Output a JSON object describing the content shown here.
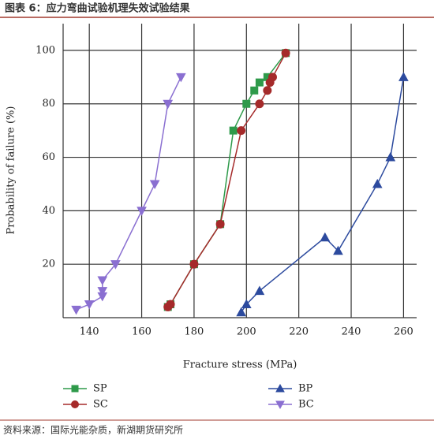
{
  "header": {
    "title": "图表 6：应力弯曲试验机理失效试验结果"
  },
  "source": "资料来源：国际光能杂质，新湖期货研究所",
  "chart_data": {
    "type": "line",
    "x_label": "Fracture stress (MPa)",
    "y_label": "Probability of failure (%)",
    "xlim": [
      130,
      265
    ],
    "xticks": [
      140,
      160,
      180,
      200,
      220,
      240,
      260
    ],
    "ylim": [
      0,
      110
    ],
    "yticks": [
      20,
      40,
      60,
      80,
      100
    ],
    "grid": true,
    "series": [
      {
        "name": "SP",
        "color": "#2e9a4a",
        "marker": "square",
        "x": [
          170,
          171,
          180,
          190,
          195,
          200,
          203,
          205,
          208,
          215
        ],
        "values": [
          4,
          5,
          20,
          35,
          70,
          80,
          85,
          88,
          90,
          99
        ]
      },
      {
        "name": "SC",
        "color": "#a52a2a",
        "marker": "circle",
        "x": [
          170,
          171,
          180,
          190,
          198,
          205,
          208,
          209,
          210,
          215
        ],
        "values": [
          4,
          5,
          20,
          35,
          70,
          80,
          85,
          88,
          90,
          99
        ]
      },
      {
        "name": "BP",
        "color": "#2c4a9e",
        "marker": "triangle-up",
        "x": [
          198,
          200,
          205,
          230,
          235,
          250,
          255,
          260
        ],
        "values": [
          2,
          5,
          10,
          30,
          25,
          50,
          60,
          90
        ]
      },
      {
        "name": "BC",
        "color": "#8a6fd1",
        "marker": "triangle-down",
        "x": [
          135,
          140,
          145,
          145,
          145,
          150,
          160,
          165,
          170,
          175
        ],
        "values": [
          3,
          5,
          8,
          10,
          14,
          20,
          40,
          50,
          80,
          90
        ]
      }
    ]
  }
}
